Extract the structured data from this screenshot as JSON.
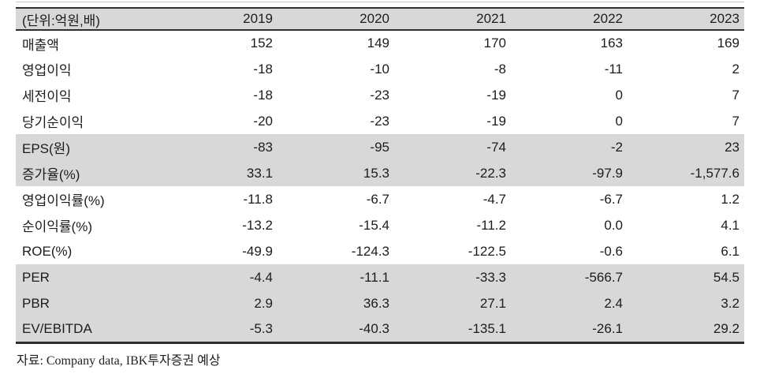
{
  "table": {
    "unit_label": "(단위:억원,배)",
    "years": [
      "2019",
      "2020",
      "2021",
      "2022",
      "2023"
    ],
    "rows": [
      {
        "label": "매출액",
        "values": [
          "152",
          "149",
          "170",
          "163",
          "169"
        ]
      },
      {
        "label": "영업이익",
        "values": [
          "-18",
          "-10",
          "-8",
          "-11",
          "2"
        ]
      },
      {
        "label": "세전이익",
        "values": [
          "-18",
          "-23",
          "-19",
          "0",
          "7"
        ]
      },
      {
        "label": "당기순이익",
        "values": [
          "-20",
          "-23",
          "-19",
          "0",
          "7"
        ]
      },
      {
        "label": "EPS(원)",
        "values": [
          "-83",
          "-95",
          "-74",
          "-2",
          "23"
        ]
      },
      {
        "label": "증가율(%)",
        "values": [
          "33.1",
          "15.3",
          "-22.3",
          "-97.9",
          "-1,577.6"
        ]
      },
      {
        "label": "영업이익률(%)",
        "values": [
          "-11.8",
          "-6.7",
          "-4.7",
          "-6.7",
          "1.2"
        ]
      },
      {
        "label": "순이익률(%)",
        "values": [
          "-13.2",
          "-15.4",
          "-11.2",
          "0.0",
          "4.1"
        ]
      },
      {
        "label": "ROE(%)",
        "values": [
          "-49.9",
          "-124.3",
          "-122.5",
          "-0.6",
          "6.1"
        ]
      },
      {
        "label": "PER",
        "values": [
          "-4.4",
          "-11.1",
          "-33.3",
          "-566.7",
          "54.5"
        ]
      },
      {
        "label": "PBR",
        "values": [
          "2.9",
          "36.3",
          "27.1",
          "2.4",
          "3.2"
        ]
      },
      {
        "label": "EV/EBITDA",
        "values": [
          "-5.3",
          "-40.3",
          "-135.1",
          "-26.1",
          "29.2"
        ]
      }
    ]
  },
  "footer": {
    "source": "자료: Company data, IBK투자증권 예상"
  },
  "colors": {
    "band_gray": "#d8d8d8",
    "border_dark": "#2e2e2e",
    "text": "#1c1c1c"
  }
}
